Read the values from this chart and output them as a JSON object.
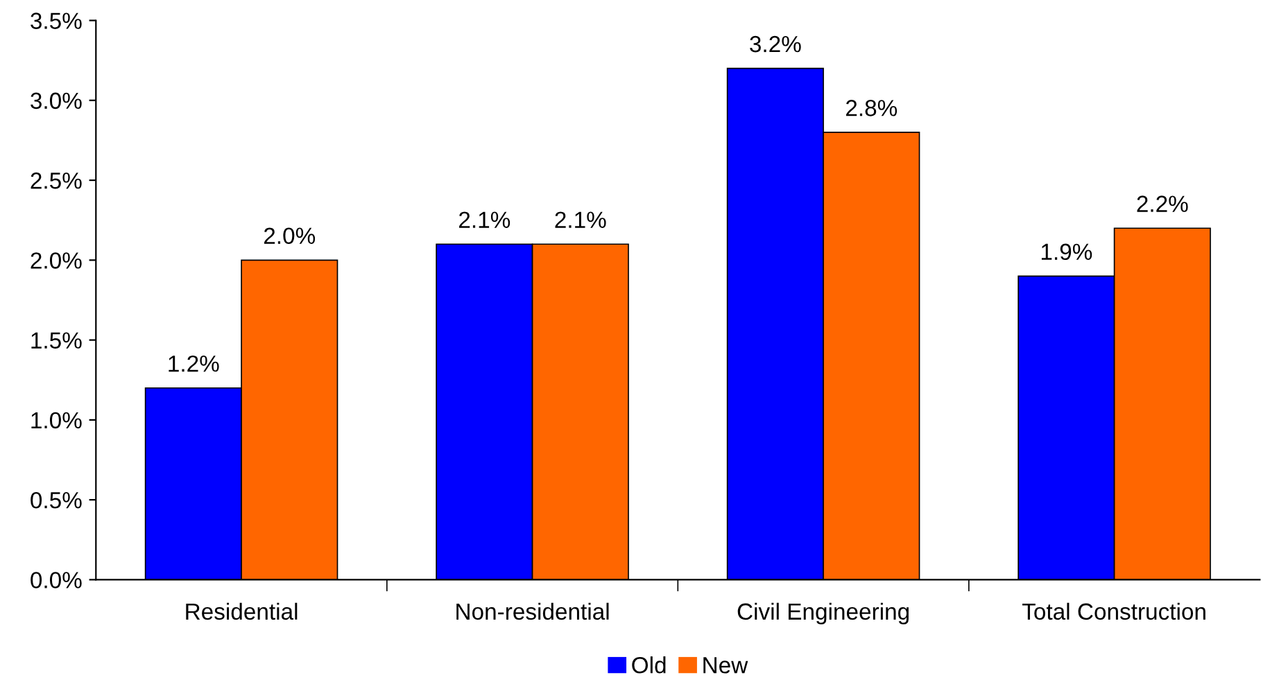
{
  "chart_data": {
    "type": "bar",
    "categories": [
      "Residential",
      "Non-residential",
      "Civil Engineering",
      "Total Construction"
    ],
    "series": [
      {
        "name": "Old",
        "color": "#0000ff",
        "values": [
          1.2,
          2.1,
          3.2,
          1.9
        ],
        "value_labels": [
          "1.2%",
          "2.1%",
          "3.2%",
          "1.9%"
        ]
      },
      {
        "name": "New",
        "color": "#ff6600",
        "values": [
          2.0,
          2.1,
          2.8,
          2.2
        ],
        "value_labels": [
          "2.0%",
          "2.1%",
          "2.8%",
          "2.2%"
        ]
      }
    ],
    "ylim": [
      0,
      3.5
    ],
    "yticks": [
      {
        "value": 0,
        "label": "0.0%"
      },
      {
        "value": 0.5,
        "label": "0.5%"
      },
      {
        "value": 1,
        "label": "1.0%"
      },
      {
        "value": 1.5,
        "label": "1.5%"
      },
      {
        "value": 2,
        "label": "2.0%"
      },
      {
        "value": 2.5,
        "label": "2.5%"
      },
      {
        "value": 3,
        "label": "3.0%"
      },
      {
        "value": 3.5,
        "label": "3.5%"
      }
    ],
    "grid": false,
    "legend": "bottom"
  }
}
